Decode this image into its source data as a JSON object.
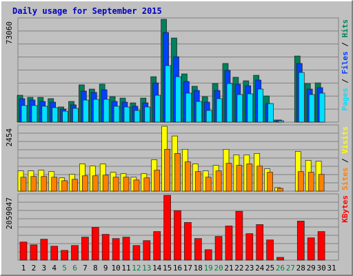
{
  "chart_data": {
    "type": "bar",
    "title": "Daily usage for September 2015",
    "categories": [
      "1",
      "2",
      "3",
      "4",
      "5",
      "6",
      "7",
      "8",
      "9",
      "10",
      "11",
      "12",
      "13",
      "14",
      "15",
      "16",
      "17",
      "18",
      "19",
      "20",
      "21",
      "22",
      "23",
      "24",
      "25",
      "26",
      "27",
      "28",
      "29",
      "30",
      "31"
    ],
    "category_colors": [
      "#000000",
      "#000000",
      "#000000",
      "#000000",
      "#008040",
      "#008040",
      "#000000",
      "#000000",
      "#000000",
      "#000000",
      "#000000",
      "#008040",
      "#008040",
      "#000000",
      "#000000",
      "#000000",
      "#000000",
      "#000000",
      "#008040",
      "#008040",
      "#000000",
      "#000000",
      "#000000",
      "#000000",
      "#000000",
      "#008040",
      "#008040",
      "#000000",
      "#000000",
      "#000000",
      "#000000"
    ],
    "panels": [
      {
        "ylim": [
          0,
          73060
        ],
        "yticks": [
          73060
        ],
        "series": [
          {
            "name": "Hits",
            "color": "#00805c",
            "values": [
              19100,
              17600,
              17600,
              16700,
              10800,
              14700,
              26500,
              23500,
              27000,
              18100,
              17100,
              13700,
              17100,
              32300,
              73060,
              59800,
              34300,
              25500,
              18100,
              27400,
              41700,
              31900,
              29400,
              33300,
              18600,
              1500,
              0,
              47000,
              27400,
              27900,
              0
            ]
          },
          {
            "name": "Files",
            "color": "#0040ff",
            "values": [
              16700,
              15700,
              14700,
              14200,
              9300,
              12300,
              22100,
              21100,
              23000,
              14700,
              14200,
              11300,
              13700,
              27900,
              63700,
              46500,
              28900,
              22500,
              14200,
              22500,
              36800,
              27000,
              25900,
              29900,
              13200,
              1500,
              0,
              41700,
              23500,
              24500,
              0
            ]
          },
          {
            "name": "Pages",
            "color": "#00e0ff",
            "values": [
              11800,
              11800,
              11300,
              10300,
              7800,
              9800,
              15700,
              16200,
              16200,
              11300,
              10800,
              8300,
              10800,
              19100,
              40200,
              32300,
              20600,
              14700,
              8300,
              16700,
              27400,
              19600,
              20100,
              23500,
              13200,
              1000,
              0,
              35300,
              19600,
              20600,
              0
            ]
          }
        ]
      },
      {
        "ylim": [
          0,
          2454
        ],
        "yticks": [
          2454
        ],
        "series": [
          {
            "name": "Visits",
            "color": "#ffff00",
            "values": [
              766,
              766,
              792,
              739,
              502,
              634,
              1030,
              950,
              1030,
              713,
              660,
              528,
              660,
              1188,
              2454,
              2086,
              1584,
              1030,
              766,
              977,
              1584,
              1373,
              1373,
              1426,
              845,
              132,
              0,
              1505,
              1162,
              1135,
              0
            ]
          },
          {
            "name": "Sites",
            "color": "#ff8000",
            "values": [
              528,
              554,
              554,
              528,
              396,
              449,
              581,
              581,
              607,
              528,
              528,
              422,
              502,
              792,
              1584,
              1426,
              1109,
              739,
              528,
              766,
              1056,
              977,
              1030,
              950,
              713,
              106,
              0,
              739,
              713,
              634,
              0
            ]
          }
        ]
      },
      {
        "ylim": [
          0,
          2059047
        ],
        "yticks": [
          2059047
        ],
        "series": [
          {
            "name": "KBytes",
            "color": "#ff0000",
            "values": [
              575600,
              487000,
              664000,
              443000,
              310000,
              465000,
              731000,
              1040000,
              819000,
              686000,
              731000,
              465000,
              620000,
              908000,
              2059047,
              1572000,
              1196000,
              686000,
              332000,
              753000,
              1085000,
              1550000,
              841000,
              1129000,
              642000,
              89000,
              0,
              1240000,
              708000,
              908000,
              0
            ]
          }
        ]
      }
    ]
  }
}
